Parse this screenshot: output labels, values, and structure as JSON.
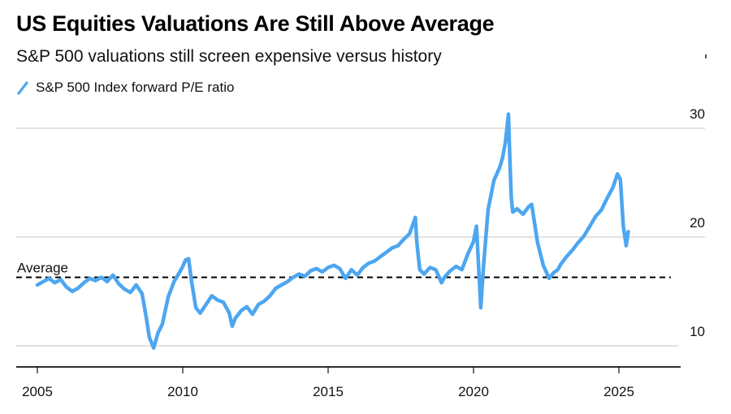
{
  "header": {
    "title": "US Equities Valuations Are Still Above Average",
    "subtitle": "S&P 500 valuations still screen expensive versus history"
  },
  "legend": {
    "items": [
      {
        "label": "S&P 500 Index forward P/E ratio",
        "color": "#4da6f0",
        "icon": "diagonal-line-icon"
      }
    ]
  },
  "colors": {
    "series": "#4da6f0",
    "grid": "#d9d9d9",
    "average": "#000000",
    "axis": "#111111"
  },
  "chart_data": {
    "type": "line",
    "title": "US Equities Valuations Are Still Above Average",
    "subtitle": "S&P 500 valuations still screen expensive versus history",
    "xlabel": "",
    "ylabel": "",
    "xlim": [
      2004.9,
      2026.6
    ],
    "ylim": [
      8.5,
      31.5
    ],
    "x_ticks": [
      2005,
      2010,
      2015,
      2020,
      2025
    ],
    "x_tick_labels": [
      "2005",
      "2010",
      "2015",
      "2020",
      "2025"
    ],
    "y_ticks": [
      10,
      20,
      30
    ],
    "y_tick_labels": [
      "10",
      "20",
      "30"
    ],
    "y_axis_side": "right",
    "grid": "horizontal",
    "legend_position": "top-left",
    "annotations": [
      {
        "type": "hline",
        "label": "Average",
        "y": 16.3,
        "style": "dashed"
      }
    ],
    "series": [
      {
        "name": "S&P 500 Index forward P/E ratio",
        "x": [
          2005.0,
          2005.2,
          2005.4,
          2005.6,
          2005.8,
          2006.0,
          2006.2,
          2006.4,
          2006.6,
          2006.8,
          2007.0,
          2007.2,
          2007.4,
          2007.6,
          2007.8,
          2008.0,
          2008.2,
          2008.4,
          2008.6,
          2008.75,
          2008.85,
          2009.0,
          2009.15,
          2009.3,
          2009.5,
          2009.7,
          2009.9,
          2010.0,
          2010.1,
          2010.2,
          2010.3,
          2010.45,
          2010.6,
          2010.8,
          2011.0,
          2011.2,
          2011.4,
          2011.6,
          2011.7,
          2011.8,
          2012.0,
          2012.2,
          2012.4,
          2012.6,
          2012.8,
          2013.0,
          2013.2,
          2013.4,
          2013.6,
          2013.8,
          2014.0,
          2014.2,
          2014.4,
          2014.6,
          2014.8,
          2015.0,
          2015.2,
          2015.4,
          2015.6,
          2015.8,
          2016.0,
          2016.2,
          2016.4,
          2016.6,
          2016.8,
          2017.0,
          2017.2,
          2017.4,
          2017.6,
          2017.8,
          2018.0,
          2018.05,
          2018.15,
          2018.3,
          2018.5,
          2018.7,
          2018.9,
          2019.0,
          2019.2,
          2019.4,
          2019.6,
          2019.8,
          2020.0,
          2020.1,
          2020.2,
          2020.25,
          2020.35,
          2020.5,
          2020.7,
          2020.9,
          2021.0,
          2021.1,
          2021.2,
          2021.25,
          2021.3,
          2021.35,
          2021.5,
          2021.7,
          2021.9,
          2022.0,
          2022.2,
          2022.4,
          2022.6,
          2022.75,
          2022.9,
          2023.0,
          2023.2,
          2023.4,
          2023.6,
          2023.8,
          2024.0,
          2024.2,
          2024.4,
          2024.6,
          2024.8,
          2024.95,
          2025.05,
          2025.15,
          2025.25,
          2025.32
        ],
        "y": [
          15.6,
          15.9,
          16.2,
          15.8,
          16.1,
          15.4,
          15.0,
          15.3,
          15.8,
          16.2,
          16.0,
          16.3,
          15.9,
          16.5,
          15.7,
          15.2,
          14.9,
          15.6,
          14.8,
          12.5,
          10.8,
          9.8,
          11.2,
          12.0,
          14.5,
          15.9,
          16.8,
          17.3,
          17.9,
          18.0,
          16.0,
          13.5,
          13.0,
          13.8,
          14.6,
          14.2,
          14.0,
          13.0,
          11.8,
          12.5,
          13.2,
          13.6,
          12.9,
          13.8,
          14.1,
          14.6,
          15.3,
          15.6,
          15.9,
          16.3,
          16.6,
          16.4,
          16.9,
          17.1,
          16.8,
          17.2,
          17.4,
          17.1,
          16.2,
          17.0,
          16.5,
          17.2,
          17.6,
          17.8,
          18.2,
          18.6,
          19.0,
          19.2,
          19.8,
          20.3,
          21.8,
          19.5,
          17.0,
          16.6,
          17.2,
          17.0,
          15.8,
          16.3,
          16.9,
          17.3,
          17.0,
          18.4,
          19.6,
          21.0,
          16.0,
          13.5,
          17.5,
          22.5,
          25.2,
          26.4,
          27.3,
          28.8,
          31.3,
          27.0,
          23.6,
          22.3,
          22.6,
          22.1,
          22.8,
          23.0,
          19.5,
          17.4,
          16.2,
          16.7,
          17.0,
          17.5,
          18.2,
          18.8,
          19.5,
          20.1,
          21.0,
          21.9,
          22.5,
          23.6,
          24.6,
          25.8,
          25.3,
          21.0,
          19.2,
          20.5
        ]
      }
    ]
  }
}
